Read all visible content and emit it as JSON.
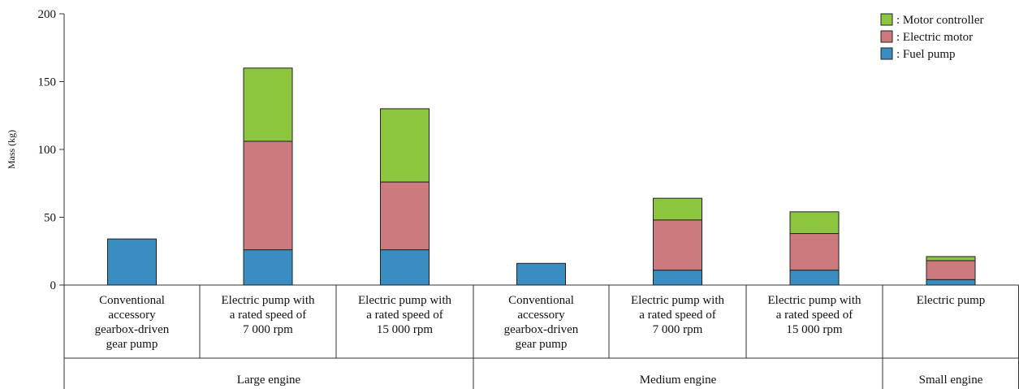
{
  "chart_data": {
    "type": "bar",
    "stacked": true,
    "ylabel": "Mass (kg)",
    "ylim": [
      0,
      200
    ],
    "yticks": [
      0,
      50,
      100,
      150,
      200
    ],
    "grid": false,
    "legend_position": "top-right",
    "series": [
      {
        "name": ": Fuel pump",
        "color": "#3a8dc1",
        "values": [
          34,
          26,
          26,
          16,
          11,
          11,
          4
        ]
      },
      {
        "name": ": Electric motor",
        "color": "#cc7a7d",
        "values": [
          0,
          80,
          50,
          0,
          37,
          27,
          14
        ]
      },
      {
        "name": ": Motor controller",
        "color": "#8cc63f",
        "values": [
          0,
          54,
          54,
          0,
          16,
          16,
          3
        ]
      }
    ],
    "categories": [
      [
        "Conventional",
        "accessory",
        "gearbox-driven",
        "gear pump"
      ],
      [
        "Electric pump with",
        "a rated speed of",
        "7 000 rpm"
      ],
      [
        "Electric pump with",
        "a rated speed of",
        "15 000 rpm"
      ],
      [
        "Conventional",
        "accessory",
        "gearbox-driven",
        "gear pump"
      ],
      [
        "Electric pump with",
        "a rated speed of",
        "7 000 rpm"
      ],
      [
        "Electric pump with",
        "a rated speed of",
        "15 000 rpm"
      ],
      [
        "Electric pump"
      ]
    ],
    "groups": [
      {
        "label": "Large engine",
        "count": 3
      },
      {
        "label": "Medium engine",
        "count": 3
      },
      {
        "label": "Small engine",
        "count": 1
      }
    ]
  }
}
